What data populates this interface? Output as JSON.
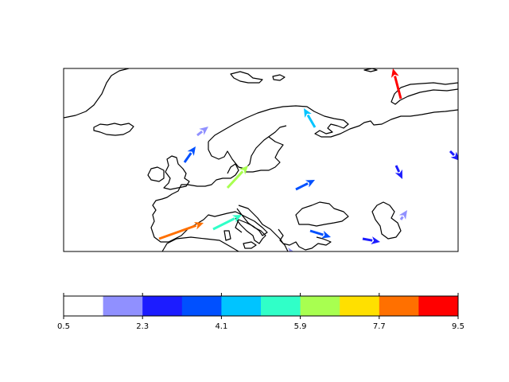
{
  "map": {
    "projection": "PlateCarree",
    "region": "Europe",
    "coastline_color": "#000000",
    "arrows": [
      {
        "name": "arrow-north-atlantic",
        "magnitude": 1.8
      },
      {
        "name": "arrow-british-isles-north",
        "magnitude": 3.5
      },
      {
        "name": "arrow-scandinavia",
        "magnitude": 4.6
      },
      {
        "name": "arrow-arctic-russia",
        "magnitude": 9.3
      },
      {
        "name": "arrow-central-europe",
        "magnitude": 6.2
      },
      {
        "name": "arrow-eastern-europe",
        "magnitude": 3.4
      },
      {
        "name": "arrow-urals-east",
        "magnitude": 2.6
      },
      {
        "name": "arrow-siberia-edge",
        "magnitude": 2.7
      },
      {
        "name": "arrow-caspian",
        "magnitude": 1.9
      },
      {
        "name": "arrow-iberia",
        "magnitude": 8.2
      },
      {
        "name": "arrow-italy",
        "magnitude": 5.4
      },
      {
        "name": "arrow-balkans",
        "magnitude": 3.3
      },
      {
        "name": "arrow-turkey",
        "magnitude": 2.8
      },
      {
        "name": "arrow-eastern-med",
        "magnitude": 1.8
      }
    ]
  },
  "colorbar": {
    "min": 0.5,
    "max": 9.5,
    "tick_labels": [
      "0.5",
      "2.3",
      "4.1",
      "5.9",
      "7.7",
      "9.5"
    ],
    "colors": [
      "#ffffff",
      "#9090ff",
      "#1c1cff",
      "#0050ff",
      "#00c4ff",
      "#30ffc8",
      "#a8ff50",
      "#ffe000",
      "#ff7000",
      "#ff0000"
    ]
  }
}
